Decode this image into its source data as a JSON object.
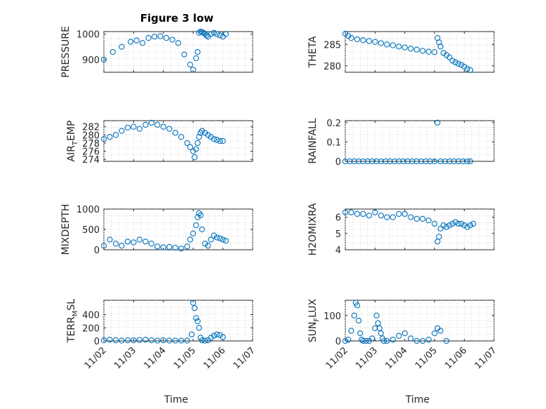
{
  "figure_title": "Figure 3 low",
  "colors": {
    "marker": "#0072BD",
    "axis": "#262626",
    "grid": "#dcdcdc"
  },
  "chart_data": [
    {
      "type": "scatter",
      "id": "pressure",
      "ylabel": "PRESSURE",
      "ylabel_sub": "",
      "ylim": [
        850,
        1010
      ],
      "yticks": [
        900,
        1000
      ],
      "xticks": [
        "11/02",
        "11/03",
        "11/04",
        "11/05",
        "11/06",
        "11/07"
      ],
      "show_xtick_labels": false,
      "grid": true,
      "series": [
        {
          "x": [
            0,
            0.3,
            0.6,
            0.9,
            1.1,
            1.3,
            1.5,
            1.7,
            1.9,
            2.1,
            2.3,
            2.5,
            2.7,
            2.9,
            3.0,
            3.1,
            3.15,
            3.2,
            3.25,
            3.3,
            3.35,
            3.4,
            3.45,
            3.5,
            3.6,
            3.7,
            3.8,
            3.9,
            4.0,
            4.1
          ],
          "y": [
            900,
            930,
            950,
            970,
            975,
            965,
            985,
            990,
            992,
            985,
            978,
            965,
            920,
            880,
            860,
            905,
            930,
            1005,
            1010,
            1008,
            1005,
            1000,
            995,
            990,
            1000,
            1005,
            1000,
            995,
            990,
            1000
          ]
        }
      ]
    },
    {
      "type": "scatter",
      "id": "theta",
      "ylabel": "THETA",
      "ylabel_sub": "",
      "ylim": [
        278.5,
        288
      ],
      "yticks": [
        280,
        285
      ],
      "xticks": [
        "11/02",
        "11/03",
        "11/04",
        "11/05",
        "11/06",
        "11/07"
      ],
      "show_xtick_labels": false,
      "grid": true,
      "series": [
        {
          "x": [
            0,
            0.1,
            0.2,
            0.4,
            0.6,
            0.8,
            1.0,
            1.2,
            1.4,
            1.6,
            1.8,
            2.0,
            2.2,
            2.4,
            2.6,
            2.8,
            3.0,
            3.1,
            3.15,
            3.2,
            3.3,
            3.4,
            3.5,
            3.6,
            3.7,
            3.8,
            3.9,
            4.0,
            4.1,
            4.2
          ],
          "y": [
            287.5,
            287,
            286.5,
            286.2,
            286,
            285.8,
            285.6,
            285.3,
            285,
            284.8,
            284.5,
            284.3,
            284,
            283.8,
            283.5,
            283.3,
            283.2,
            286.5,
            285.5,
            284.5,
            283,
            282.5,
            282,
            281.2,
            280.8,
            280.5,
            280.2,
            279.8,
            279.3,
            279
          ]
        }
      ]
    },
    {
      "type": "scatter",
      "id": "air_temp",
      "ylabel": "AIR",
      "ylabel_sub": "T",
      "ylabel_rest": "EMP",
      "ylim": [
        273.5,
        283.5
      ],
      "yticks": [
        274,
        276,
        278,
        280,
        282
      ],
      "xticks": [
        "11/02",
        "11/03",
        "11/04",
        "11/05",
        "11/06",
        "11/07"
      ],
      "show_xtick_labels": false,
      "grid": true,
      "series": [
        {
          "x": [
            0,
            0.2,
            0.4,
            0.6,
            0.8,
            1.0,
            1.2,
            1.4,
            1.6,
            1.8,
            2.0,
            2.2,
            2.4,
            2.6,
            2.8,
            2.9,
            3.0,
            3.05,
            3.1,
            3.15,
            3.2,
            3.25,
            3.3,
            3.4,
            3.5,
            3.6,
            3.7,
            3.8,
            3.9,
            4.0
          ],
          "y": [
            279,
            279.5,
            280,
            281,
            281.8,
            282,
            281.5,
            282.5,
            283,
            282.5,
            282,
            281.5,
            280.5,
            279.5,
            278,
            277,
            276,
            274.5,
            276.5,
            278,
            279.5,
            280.5,
            281,
            280.5,
            280,
            279.5,
            279,
            278.8,
            278.5,
            278.5
          ]
        }
      ]
    },
    {
      "type": "scatter",
      "id": "rainfall",
      "ylabel": "RAINFALL",
      "ylabel_sub": "",
      "ylim": [
        0,
        0.21
      ],
      "yticks": [
        0,
        0.1,
        0.2
      ],
      "xticks": [
        "11/02",
        "11/03",
        "11/04",
        "11/05",
        "11/06",
        "11/07"
      ],
      "show_xtick_labels": false,
      "grid": true,
      "series": [
        {
          "x": [
            0,
            0.15,
            0.3,
            0.45,
            0.6,
            0.75,
            0.9,
            1.05,
            1.2,
            1.35,
            1.5,
            1.65,
            1.8,
            1.95,
            2.1,
            2.25,
            2.4,
            2.55,
            2.7,
            2.85,
            3.0,
            3.1,
            3.2,
            3.35,
            3.5,
            3.65,
            3.8,
            3.95,
            4.1,
            4.2
          ],
          "y": [
            0,
            0,
            0,
            0,
            0,
            0,
            0,
            0,
            0,
            0,
            0,
            0,
            0,
            0,
            0,
            0,
            0,
            0,
            0,
            0,
            0,
            0.2,
            0,
            0,
            0,
            0,
            0,
            0,
            0,
            0
          ]
        }
      ]
    },
    {
      "type": "scatter",
      "id": "mixdepth",
      "ylabel": "MIXDEPTH",
      "ylabel_sub": "",
      "ylim": [
        0,
        1000
      ],
      "yticks": [
        0,
        500,
        1000
      ],
      "xticks": [
        "11/02",
        "11/03",
        "11/04",
        "11/05",
        "11/06",
        "11/07"
      ],
      "show_xtick_labels": false,
      "grid": true,
      "series": [
        {
          "x": [
            0,
            0.2,
            0.4,
            0.6,
            0.8,
            1.0,
            1.2,
            1.4,
            1.6,
            1.8,
            2.0,
            2.2,
            2.4,
            2.6,
            2.8,
            2.9,
            3.0,
            3.1,
            3.15,
            3.2,
            3.25,
            3.3,
            3.4,
            3.5,
            3.6,
            3.7,
            3.8,
            3.9,
            4.0,
            4.1
          ],
          "y": [
            100,
            250,
            150,
            100,
            200,
            180,
            250,
            200,
            150,
            80,
            60,
            70,
            50,
            30,
            80,
            250,
            400,
            600,
            800,
            900,
            850,
            500,
            150,
            100,
            250,
            350,
            300,
            280,
            250,
            220
          ]
        }
      ]
    },
    {
      "type": "scatter",
      "id": "h2omixra",
      "ylabel": "H2OMIXRA",
      "ylabel_sub": "",
      "ylim": [
        4,
        6.5
      ],
      "yticks": [
        4,
        5,
        6
      ],
      "xticks": [
        "11/02",
        "11/03",
        "11/04",
        "11/05",
        "11/06",
        "11/07"
      ],
      "show_xtick_labels": false,
      "grid": true,
      "series": [
        {
          "x": [
            0,
            0.2,
            0.4,
            0.6,
            0.8,
            1.0,
            1.2,
            1.4,
            1.6,
            1.8,
            2.0,
            2.2,
            2.4,
            2.6,
            2.8,
            3.0,
            3.1,
            3.15,
            3.2,
            3.3,
            3.4,
            3.5,
            3.6,
            3.7,
            3.8,
            3.9,
            4.0,
            4.1,
            4.2,
            4.3
          ],
          "y": [
            6.3,
            6.3,
            6.2,
            6.2,
            6.1,
            6.3,
            6.1,
            6.0,
            6.0,
            6.2,
            6.2,
            6.0,
            5.9,
            5.9,
            5.8,
            5.6,
            4.5,
            4.8,
            5.3,
            5.5,
            5.4,
            5.5,
            5.6,
            5.7,
            5.6,
            5.6,
            5.5,
            5.4,
            5.5,
            5.6
          ]
        }
      ]
    },
    {
      "type": "scatter",
      "id": "terr_msl",
      "ylabel": "TERR",
      "ylabel_sub": "M",
      "ylabel_rest": "SL",
      "ylim": [
        0,
        620
      ],
      "yticks": [
        0,
        200,
        400
      ],
      "xticks": [
        "11/02",
        "11/03",
        "11/04",
        "11/05",
        "11/06",
        "11/07"
      ],
      "show_xtick_labels": true,
      "grid": true,
      "series": [
        {
          "x": [
            0,
            0.2,
            0.4,
            0.6,
            0.8,
            1.0,
            1.2,
            1.4,
            1.6,
            1.8,
            2.0,
            2.2,
            2.4,
            2.6,
            2.8,
            2.95,
            3.0,
            3.05,
            3.1,
            3.15,
            3.2,
            3.25,
            3.3,
            3.4,
            3.5,
            3.6,
            3.7,
            3.8,
            3.9,
            4.0
          ],
          "y": [
            10,
            20,
            10,
            5,
            10,
            10,
            15,
            20,
            10,
            5,
            10,
            5,
            5,
            5,
            5,
            100,
            580,
            500,
            350,
            300,
            200,
            50,
            10,
            5,
            10,
            50,
            80,
            100,
            90,
            60
          ]
        }
      ]
    },
    {
      "type": "scatter",
      "id": "sun_flux",
      "ylabel": "SUN",
      "ylabel_sub": "F",
      "ylabel_rest": "LUX",
      "ylim": [
        0,
        160
      ],
      "yticks": [
        0,
        100
      ],
      "xticks": [
        "11/02",
        "11/03",
        "11/04",
        "11/05",
        "11/06",
        "11/07"
      ],
      "show_xtick_labels": true,
      "grid": true,
      "series": [
        {
          "x": [
            0,
            0.1,
            0.2,
            0.3,
            0.35,
            0.4,
            0.45,
            0.5,
            0.55,
            0.6,
            0.7,
            0.8,
            0.9,
            1.0,
            1.05,
            1.1,
            1.15,
            1.2,
            1.25,
            1.3,
            1.4,
            1.6,
            1.8,
            2.0,
            2.2,
            2.4,
            2.6,
            2.8,
            3.0,
            3.1,
            3.2,
            3.4
          ],
          "y": [
            0,
            5,
            40,
            100,
            150,
            140,
            80,
            30,
            5,
            0,
            0,
            0,
            10,
            50,
            100,
            70,
            50,
            30,
            10,
            0,
            0,
            5,
            20,
            30,
            10,
            0,
            0,
            5,
            30,
            50,
            40,
            0
          ]
        }
      ]
    }
  ],
  "xlabel_bottom_left": "Time",
  "xlabel_bottom_right": "Time"
}
